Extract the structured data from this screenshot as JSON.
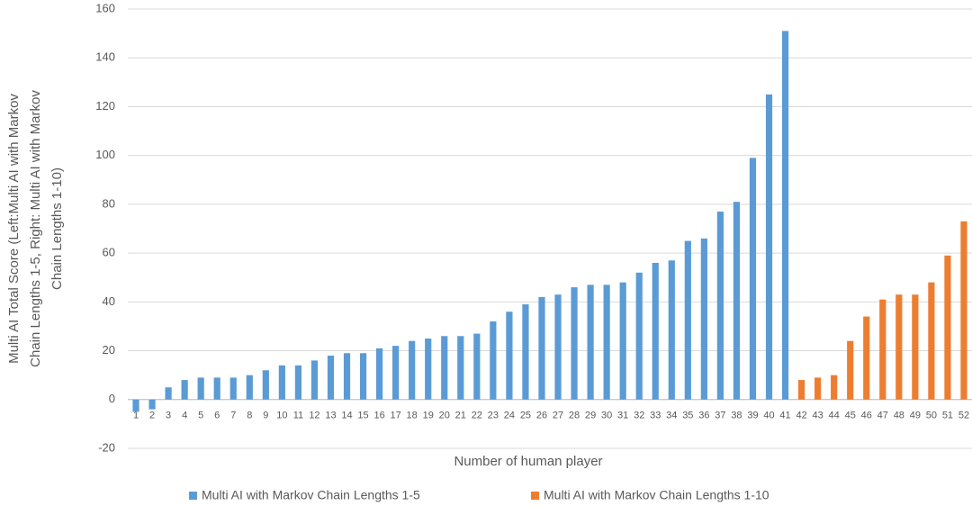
{
  "chart_data": {
    "type": "bar",
    "ylabel": [
      "Multi AI Total Score (Left:Multi AI with Markov",
      "Chain Lengths 1-5, Right: Multi AI with Markov",
      "Chain Lengths 1-10)"
    ],
    "xlabel": "Number of human player",
    "categories": [
      "1",
      "2",
      "3",
      "4",
      "5",
      "6",
      "7",
      "8",
      "9",
      "10",
      "11",
      "12",
      "13",
      "14",
      "15",
      "16",
      "17",
      "18",
      "19",
      "20",
      "21",
      "22",
      "23",
      "24",
      "25",
      "26",
      "27",
      "28",
      "29",
      "30",
      "31",
      "32",
      "33",
      "34",
      "35",
      "36",
      "37",
      "38",
      "39",
      "40",
      "41",
      "42",
      "43",
      "44",
      "45",
      "46",
      "47",
      "48",
      "49",
      "50",
      "51",
      "52"
    ],
    "series": [
      {
        "name": "Multi AI with Markov Chain Lengths 1-5",
        "color": "#5b9bd5",
        "values": [
          -5,
          -4,
          5,
          8,
          9,
          9,
          9,
          10,
          12,
          14,
          14,
          16,
          18,
          19,
          19,
          21,
          22,
          24,
          25,
          26,
          26,
          27,
          32,
          36,
          39,
          42,
          43,
          46,
          47,
          47,
          48,
          52,
          56,
          57,
          65,
          66,
          77,
          81,
          99,
          125,
          151,
          null,
          null,
          null,
          null,
          null,
          null,
          null,
          null,
          null,
          null,
          null
        ]
      },
      {
        "name": "Multi AI with Markov Chain Lengths 1-10",
        "color": "#ed7d31",
        "values": [
          null,
          null,
          null,
          null,
          null,
          null,
          null,
          null,
          null,
          null,
          null,
          null,
          null,
          null,
          null,
          null,
          null,
          null,
          null,
          null,
          null,
          null,
          null,
          null,
          null,
          null,
          null,
          null,
          null,
          null,
          null,
          null,
          null,
          null,
          null,
          null,
          null,
          null,
          null,
          null,
          null,
          8,
          9,
          10,
          24,
          34,
          41,
          43,
          43,
          48,
          59,
          73
        ]
      }
    ],
    "ylim": [
      -20,
      160
    ],
    "yticks": [
      -20,
      0,
      20,
      40,
      60,
      80,
      100,
      120,
      140,
      160
    ],
    "grid": true,
    "legend": "bottom"
  }
}
